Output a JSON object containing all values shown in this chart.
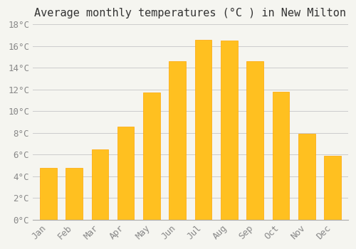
{
  "title": "Average monthly temperatures (°C ) in New Milton",
  "months": [
    "Jan",
    "Feb",
    "Mar",
    "Apr",
    "May",
    "Jun",
    "Jul",
    "Aug",
    "Sep",
    "Oct",
    "Nov",
    "Dec"
  ],
  "values": [
    4.8,
    4.8,
    6.5,
    8.6,
    11.7,
    14.6,
    16.6,
    16.5,
    14.6,
    11.8,
    7.9,
    5.9
  ],
  "bar_color_main": "#FFC020",
  "bar_color_edge": "#FFA500",
  "background_color": "#F5F5F0",
  "grid_color": "#CCCCCC",
  "ylim": [
    0,
    18
  ],
  "yticks": [
    0,
    2,
    4,
    6,
    8,
    10,
    12,
    14,
    16,
    18
  ],
  "title_fontsize": 11,
  "tick_fontsize": 9,
  "bar_width": 0.65
}
